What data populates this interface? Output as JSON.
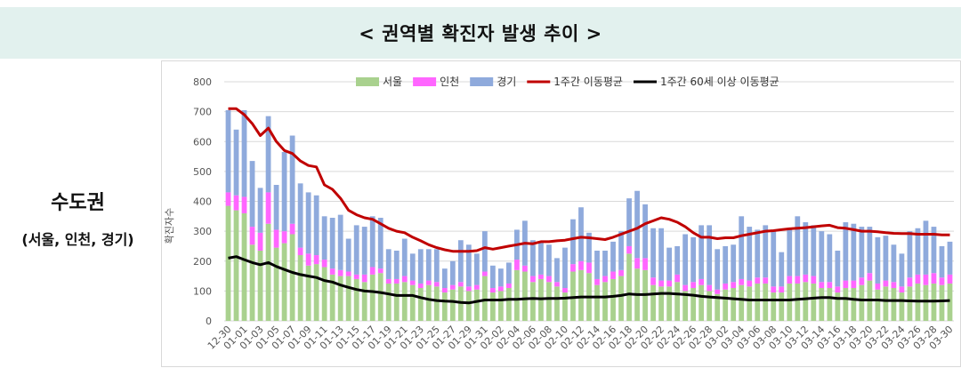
{
  "header": {
    "title": "< 권역별 확진자 발생 추이 >"
  },
  "side": {
    "title": "수도권",
    "subtitle": "(서울, 인천, 경기)"
  },
  "colors": {
    "seoul": "#a9d18e",
    "incheon": "#ff66ff",
    "gyeonggi": "#8faadc",
    "ma_total": "#c00000",
    "ma_60": "#000000",
    "header_bg": "#e2f1ee"
  },
  "chart_data": {
    "type": "bar",
    "stacked": true,
    "title": "",
    "xlabel": "",
    "ylabel": "확진자수",
    "ylim": [
      0,
      800
    ],
    "yticks": [
      0,
      100,
      200,
      300,
      400,
      500,
      600,
      700,
      800
    ],
    "x": [
      "12-30",
      "12-31",
      "01-01",
      "01-02",
      "01-03",
      "01-04",
      "01-05",
      "01-06",
      "01-07",
      "01-08",
      "01-09",
      "01-10",
      "01-11",
      "01-12",
      "01-13",
      "01-14",
      "01-15",
      "01-16",
      "01-17",
      "01-18",
      "01-19",
      "01-20",
      "01-21",
      "01-22",
      "01-23",
      "01-24",
      "01-25",
      "01-26",
      "01-27",
      "01-28",
      "01-29",
      "01-30",
      "01-31",
      "02-01",
      "02-02",
      "02-03",
      "02-04",
      "02-05",
      "02-06",
      "02-07",
      "02-08",
      "02-09",
      "02-10",
      "02-11",
      "02-12",
      "02-13",
      "02-14",
      "02-15",
      "02-16",
      "02-17",
      "02-18",
      "02-19",
      "02-20",
      "02-21",
      "02-22",
      "02-23",
      "02-24",
      "02-25",
      "02-26",
      "02-27",
      "02-28",
      "03-01",
      "03-02",
      "03-03",
      "03-04",
      "03-05",
      "03-06",
      "03-07",
      "03-08",
      "03-09",
      "03-10",
      "03-11",
      "03-12",
      "03-13",
      "03-14",
      "03-15",
      "03-16",
      "03-17",
      "03-18",
      "03-19",
      "03-20",
      "03-21",
      "03-22",
      "03-23",
      "03-24",
      "03-25",
      "03-26",
      "03-27",
      "03-28",
      "03-29",
      "03-30"
    ],
    "xtick_labels": [
      "12-30",
      "01-01",
      "01-03",
      "01-05",
      "01-07",
      "01-09",
      "01-11",
      "01-13",
      "01-15",
      "01-17",
      "01-19",
      "01-21",
      "01-23",
      "01-25",
      "01-27",
      "01-29",
      "01-31",
      "02-02",
      "02-04",
      "02-06",
      "02-08",
      "02-10",
      "02-12",
      "02-14",
      "02-16",
      "02-18",
      "02-20",
      "02-22",
      "02-24",
      "02-26",
      "02-28",
      "03-02",
      "03-04",
      "03-06",
      "03-08",
      "03-10",
      "03-12",
      "03-14",
      "03-16",
      "03-18",
      "03-20",
      "03-22",
      "03-24",
      "03-26",
      "03-28",
      "03-30"
    ],
    "legend": {
      "position": "top",
      "entries": [
        {
          "label": "서울",
          "kind": "bar",
          "color": "#a9d18e"
        },
        {
          "label": "인천",
          "kind": "bar",
          "color": "#ff66ff"
        },
        {
          "label": "경기",
          "kind": "bar",
          "color": "#8faadc"
        },
        {
          "label": "1주간 이동평균",
          "kind": "line",
          "color": "#c00000"
        },
        {
          "label": "1주간 60세 이상 이동평균",
          "kind": "line",
          "color": "#000000"
        }
      ]
    },
    "series": [
      {
        "name": "서울",
        "type": "bar",
        "values": [
          385,
          370,
          360,
          255,
          235,
          325,
          245,
          260,
          290,
          220,
          185,
          190,
          180,
          155,
          150,
          150,
          140,
          130,
          155,
          160,
          125,
          125,
          130,
          120,
          110,
          120,
          115,
          95,
          105,
          115,
          100,
          105,
          150,
          95,
          100,
          110,
          170,
          165,
          130,
          140,
          130,
          115,
          95,
          165,
          170,
          160,
          120,
          130,
          140,
          150,
          225,
          175,
          170,
          120,
          115,
          115,
          130,
          100,
          110,
          120,
          100,
          90,
          105,
          110,
          120,
          115,
          125,
          125,
          95,
          95,
          125,
          125,
          130,
          125,
          110,
          110,
          95,
          110,
          110,
          120,
          135,
          105,
          115,
          110,
          95,
          115,
          125,
          120,
          125,
          120,
          125
        ]
      },
      {
        "name": "인천",
        "type": "bar",
        "values": [
          45,
          50,
          55,
          60,
          60,
          105,
          60,
          40,
          35,
          25,
          40,
          30,
          25,
          20,
          20,
          15,
          15,
          25,
          25,
          15,
          15,
          15,
          20,
          15,
          15,
          15,
          15,
          15,
          15,
          15,
          15,
          15,
          15,
          15,
          15,
          15,
          35,
          20,
          20,
          15,
          20,
          15,
          15,
          25,
          30,
          35,
          20,
          20,
          25,
          20,
          25,
          35,
          40,
          25,
          20,
          20,
          25,
          20,
          20,
          20,
          20,
          15,
          20,
          20,
          20,
          20,
          20,
          20,
          20,
          20,
          25,
          25,
          25,
          25,
          20,
          20,
          20,
          25,
          25,
          25,
          25,
          20,
          20,
          20,
          20,
          30,
          30,
          35,
          35,
          25,
          30
        ]
      },
      {
        "name": "경기",
        "type": "bar",
        "values": [
          275,
          220,
          290,
          220,
          150,
          255,
          150,
          265,
          295,
          215,
          205,
          200,
          145,
          170,
          185,
          110,
          165,
          160,
          170,
          170,
          100,
          95,
          125,
          90,
          115,
          105,
          110,
          65,
          80,
          140,
          140,
          105,
          135,
          75,
          60,
          70,
          100,
          150,
          120,
          110,
          105,
          80,
          135,
          150,
          180,
          100,
          95,
          85,
          100,
          130,
          160,
          225,
          180,
          165,
          175,
          110,
          95,
          170,
          150,
          180,
          200,
          135,
          125,
          125,
          210,
          180,
          160,
          175,
          185,
          115,
          155,
          200,
          175,
          170,
          170,
          160,
          120,
          195,
          190,
          170,
          155,
          155,
          150,
          125,
          110,
          155,
          155,
          180,
          155,
          105,
          110
        ]
      },
      {
        "name": "1주간 이동평균",
        "type": "line",
        "values": [
          710,
          710,
          690,
          660,
          620,
          645,
          600,
          570,
          560,
          535,
          520,
          515,
          455,
          440,
          410,
          370,
          355,
          345,
          340,
          325,
          310,
          300,
          295,
          280,
          268,
          255,
          245,
          238,
          233,
          233,
          233,
          235,
          245,
          240,
          245,
          250,
          255,
          260,
          258,
          265,
          265,
          268,
          270,
          275,
          280,
          278,
          275,
          272,
          280,
          290,
          300,
          310,
          325,
          335,
          345,
          340,
          330,
          315,
          295,
          280,
          280,
          275,
          278,
          278,
          285,
          290,
          295,
          300,
          302,
          305,
          308,
          310,
          312,
          315,
          318,
          320,
          312,
          310,
          305,
          300,
          300,
          298,
          295,
          293,
          292,
          292,
          290,
          290,
          290,
          288,
          288
        ]
      },
      {
        "name": "1주간 60세 이상 이동평균",
        "type": "line",
        "values": [
          210,
          215,
          205,
          195,
          188,
          195,
          182,
          172,
          162,
          155,
          150,
          145,
          135,
          130,
          120,
          112,
          105,
          100,
          98,
          95,
          90,
          85,
          85,
          85,
          78,
          72,
          68,
          66,
          65,
          62,
          60,
          65,
          70,
          70,
          70,
          72,
          72,
          74,
          75,
          74,
          75,
          75,
          76,
          78,
          80,
          80,
          80,
          80,
          82,
          85,
          90,
          88,
          88,
          90,
          92,
          92,
          90,
          88,
          86,
          82,
          80,
          78,
          76,
          74,
          72,
          70,
          70,
          70,
          70,
          70,
          70,
          72,
          74,
          76,
          78,
          78,
          75,
          75,
          72,
          70,
          70,
          70,
          68,
          68,
          68,
          67,
          66,
          66,
          66,
          67,
          68
        ]
      }
    ]
  }
}
